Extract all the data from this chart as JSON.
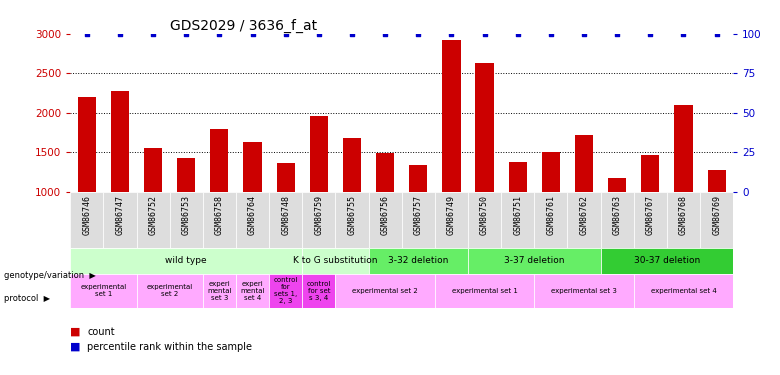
{
  "title": "GDS2029 / 3636_f_at",
  "samples": [
    "GSM86746",
    "GSM86747",
    "GSM86752",
    "GSM86753",
    "GSM86758",
    "GSM86764",
    "GSM86748",
    "GSM86759",
    "GSM86755",
    "GSM86756",
    "GSM86757",
    "GSM86749",
    "GSM86750",
    "GSM86751",
    "GSM86761",
    "GSM86762",
    "GSM86763",
    "GSM86767",
    "GSM86768",
    "GSM86769"
  ],
  "counts": [
    2200,
    2280,
    1560,
    1430,
    1800,
    1630,
    1360,
    1960,
    1680,
    1490,
    1340,
    2920,
    2630,
    1380,
    1500,
    1720,
    1180,
    1460,
    2100,
    1270
  ],
  "percentiles": [
    100,
    100,
    100,
    100,
    100,
    100,
    100,
    100,
    100,
    100,
    100,
    100,
    100,
    100,
    100,
    100,
    100,
    100,
    100,
    100
  ],
  "ylim_left": [
    1000,
    3000
  ],
  "ylim_right": [
    0,
    100
  ],
  "yticks_left": [
    1000,
    1500,
    2000,
    2500,
    3000
  ],
  "yticks_right": [
    0,
    25,
    50,
    75,
    100
  ],
  "bar_color": "#cc0000",
  "dot_color": "#0000cc",
  "sample_box_color": "#dddddd",
  "grid_color": "#888888",
  "background_color": "#ffffff",
  "label_color_left": "#cc0000",
  "label_color_right": "#0000cc",
  "geno_configs": [
    {
      "label": "wild type",
      "start": 0,
      "end": 7,
      "color": "#ccffcc"
    },
    {
      "label": "K to G substitution",
      "start": 7,
      "end": 9,
      "color": "#ccffcc"
    },
    {
      "label": "3-32 deletion",
      "start": 9,
      "end": 12,
      "color": "#66ee66"
    },
    {
      "label": "3-37 deletion",
      "start": 12,
      "end": 16,
      "color": "#66ee66"
    },
    {
      "label": "30-37 deletion",
      "start": 16,
      "end": 20,
      "color": "#33cc33"
    }
  ],
  "prot_configs": [
    {
      "label": "experimental\nset 1",
      "start": 0,
      "end": 2,
      "color": "#ffaaff"
    },
    {
      "label": "experimental\nset 2",
      "start": 2,
      "end": 4,
      "color": "#ffaaff"
    },
    {
      "label": "experi\nmental\nset 3",
      "start": 4,
      "end": 5,
      "color": "#ffaaff"
    },
    {
      "label": "experi\nmental\nset 4",
      "start": 5,
      "end": 6,
      "color": "#ffaaff"
    },
    {
      "label": "control\nfor\nsets 1,\n2, 3",
      "start": 6,
      "end": 7,
      "color": "#ee44ee"
    },
    {
      "label": "control\nfor set\ns 3, 4",
      "start": 7,
      "end": 8,
      "color": "#ee44ee"
    },
    {
      "label": "experimental set 2",
      "start": 8,
      "end": 11,
      "color": "#ffaaff"
    },
    {
      "label": "experimental set 1",
      "start": 11,
      "end": 14,
      "color": "#ffaaff"
    },
    {
      "label": "experimental set 3",
      "start": 14,
      "end": 17,
      "color": "#ffaaff"
    },
    {
      "label": "experimental set 4",
      "start": 17,
      "end": 20,
      "color": "#ffaaff"
    }
  ]
}
